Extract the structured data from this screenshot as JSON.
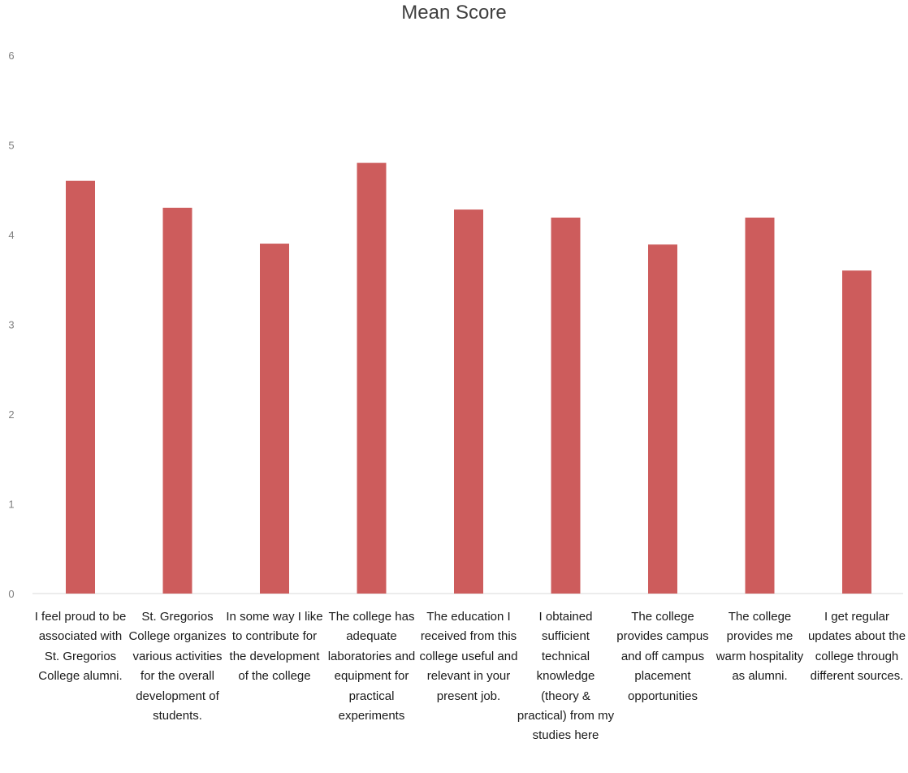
{
  "chart_data": {
    "type": "bar",
    "title": "Mean Score",
    "xlabel": "",
    "ylabel": "",
    "ylim": [
      0,
      6
    ],
    "yticks": [
      "0",
      "1",
      "2",
      "3",
      "4",
      "5",
      "6"
    ],
    "grid": false,
    "legend": "none",
    "bar_color": "#cd5c5c",
    "categories": [
      "I feel proud to be associated with St. Gregorios College alumni.",
      "St. Gregorios College organizes various activities for the overall development of students.",
      "In some way I like to contribute for the development of the college",
      "The college has adequate laboratories and equipment for practical experiments",
      "The education I received from this college useful and relevant in your present job.",
      "I obtained sufficient technical knowledge (theory & practical) from my studies here",
      "The college provides campus and off campus placement opportunities",
      "The college provides me warm hospitality as alumni.",
      "I get regular updates about the college through different sources."
    ],
    "values": [
      4.6,
      4.3,
      3.9,
      4.8,
      4.28,
      4.19,
      3.89,
      4.19,
      3.6
    ]
  }
}
